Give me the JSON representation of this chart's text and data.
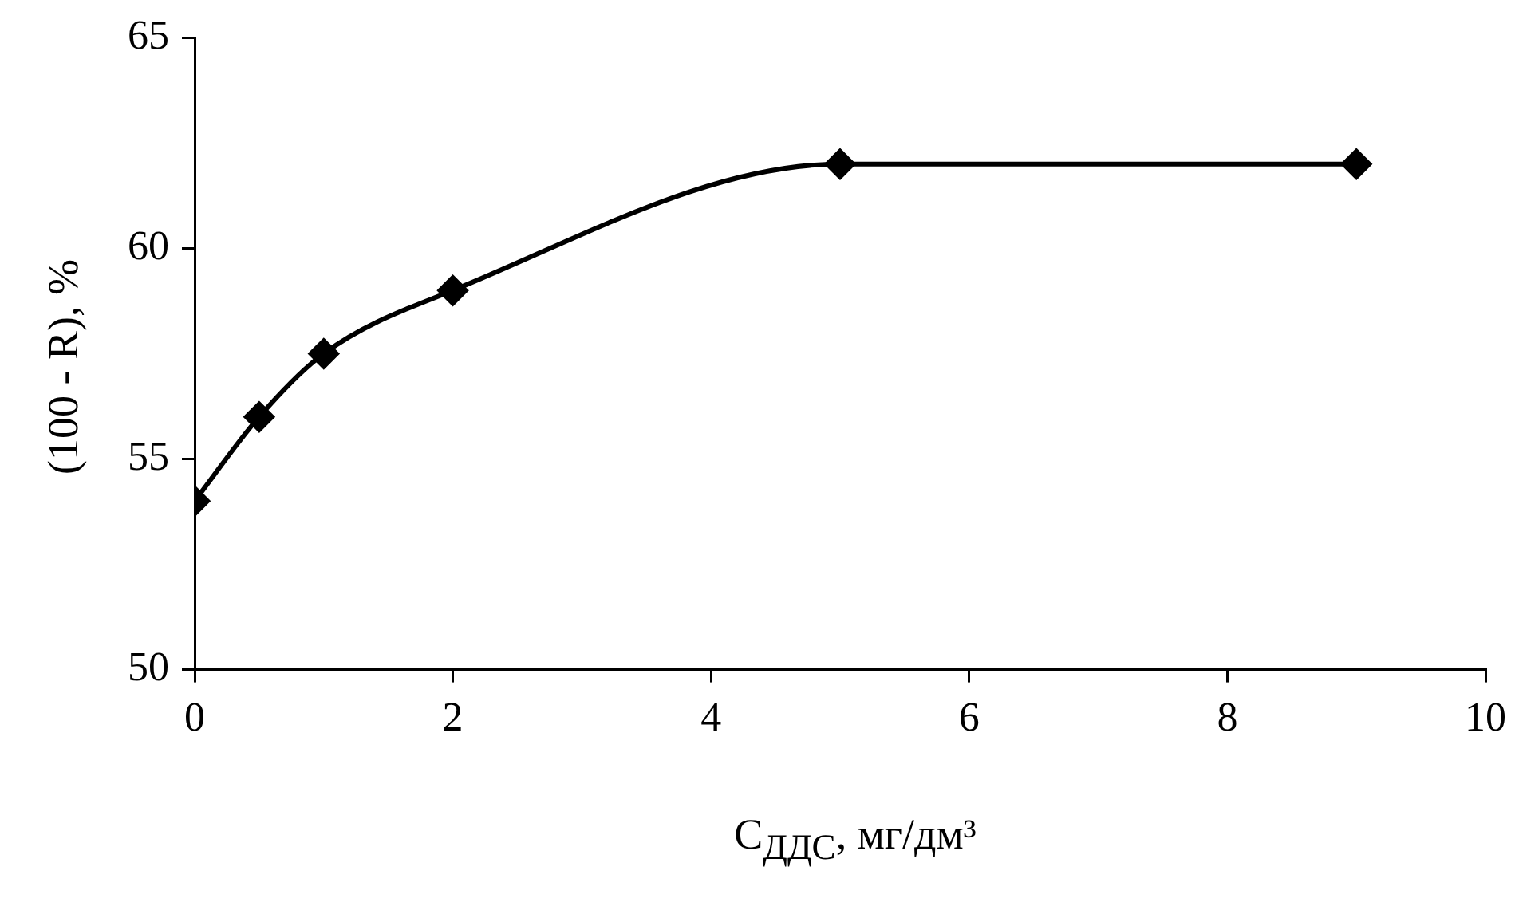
{
  "chart_data": {
    "type": "line",
    "xlabel": "C$_{ДДС}$, мг/дм³",
    "ylabel": "(100 - R), %",
    "x": [
      0,
      0.5,
      1,
      2,
      5,
      9
    ],
    "series": [
      {
        "color": "#000000",
        "values": [
          54,
          56,
          57.5,
          59,
          62,
          62
        ]
      }
    ],
    "xlim": [
      0,
      10
    ],
    "xticks": [
      0,
      2,
      4,
      6,
      8,
      10
    ],
    "ylim": [
      50,
      65
    ],
    "yticks": [
      50,
      55,
      60,
      65
    ],
    "marker": "diamond",
    "line_style": "solid",
    "legend": false
  }
}
